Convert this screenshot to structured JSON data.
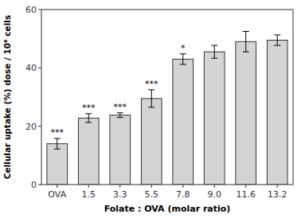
{
  "chart_data": {
    "type": "bar",
    "categories": [
      "OVA",
      "1.5",
      "3.3",
      "5.5",
      "7.8",
      "9.0",
      "11.6",
      "13.2"
    ],
    "values": [
      14.0,
      22.8,
      23.8,
      29.5,
      43.0,
      45.5,
      49.0,
      49.5
    ],
    "errors": [
      1.8,
      1.5,
      0.8,
      3.0,
      1.8,
      2.2,
      3.5,
      1.8
    ],
    "significance": [
      "***",
      "***",
      "***",
      "***",
      "*",
      null,
      null,
      null
    ],
    "color": "#d4d4d4",
    "xlabel": "Folate : OVA (molar ratio)",
    "ylabel": "Cellular uptake (%) dose / 10⁶ cells",
    "ylim": [
      0,
      60
    ],
    "yticks": [
      0,
      20,
      40,
      60
    ],
    "grid": false
  }
}
